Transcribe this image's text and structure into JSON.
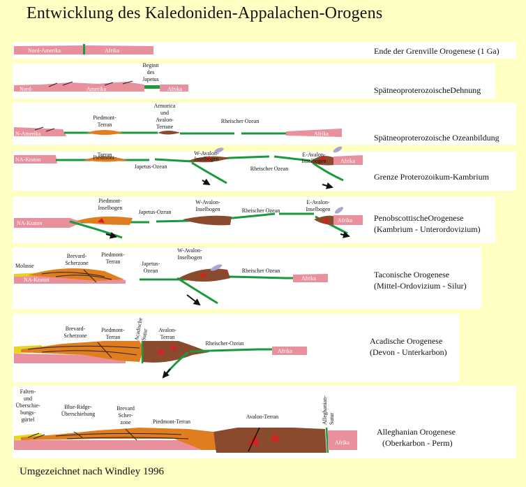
{
  "title": "Entwicklung des Kaledoniden-Appalachen-Orogens",
  "credit": "Umgezeichnet nach Windley 1996",
  "colors": {
    "background": "#ffffc4",
    "panel": "#ffffff",
    "continent": "#e8909c",
    "oceanic_crust": "#1a9a3c",
    "terrane_orange": "#e07d1e",
    "terrane_brown": "#8a4a2e",
    "magma": "#d8201e",
    "volcanic": "#a9a6d4"
  },
  "panels": [
    {
      "stage": "Ende der Grenville Orogenese (1 Ga)",
      "labels": [
        "Nord-Amerika",
        "Afrika"
      ]
    },
    {
      "stage": "SpätneoproterozoischeDehnung",
      "labels": [
        "Nord-",
        "Amerika",
        "Beginn",
        "des",
        "Japetus",
        "Afrika"
      ]
    },
    {
      "stage": "Spätneoproterozoische Ozeanbildung",
      "labels": [
        "N-Amerika",
        "Piedmont-",
        "Terran",
        "Armorica",
        "und",
        "Avalon-",
        "Terrane",
        "Rheischer Ozean",
        "Afrika"
      ]
    },
    {
      "stage": "Grenze Proterozoikum-Kambrium",
      "labels": [
        "NA-Kraton",
        "Piedmont-",
        "Terran",
        "Japetus-Ozean",
        "W-Avalon-",
        "Inselbogen",
        "Rheischer Ozean",
        "E-Avalon-",
        "Inselbogen",
        "Afrika"
      ]
    },
    {
      "stage": "PenobscottischeOrogenese",
      "stage2": "(Kambrium - Unterordovizium)",
      "labels": [
        "NA-Kraton",
        "Piedmont-",
        "Inselbogen",
        "Japetus-Ozean",
        "W-Avalon-",
        "Inselbogen",
        "Rheischer Ozean",
        "E-Avalon-",
        "Inselbogen",
        "Afrika"
      ]
    },
    {
      "stage": "Taconische Orogenese",
      "stage2": "(Mittel-Ordovizium - Silur)",
      "labels": [
        "Molasse",
        "Brevard-",
        "Scherzone",
        "Piedmont-",
        "Terran",
        "Japetus-",
        "Ozean",
        "W-Avalon-",
        "Inselbogen",
        "Rheischer Ozean",
        "NA-Kraton",
        "Afrika"
      ]
    },
    {
      "stage": "Acadische Orogenese",
      "stage2": "(Devon - Unterkarbon)",
      "labels": [
        "Brevard-",
        "Scherzone",
        "Piedmont-",
        "Terran",
        "Acadische",
        "Sutur",
        "Avalon-",
        "Terran",
        "Rheischer-Ozean",
        "Afrika"
      ]
    },
    {
      "stage": "Alleghanian Orogenese",
      "stage2": "(Oberkarbon - Perm)",
      "labels": [
        "Falten-",
        "und",
        "Überschie-",
        "bungs-",
        "gürtel",
        "Blue-Ridge-",
        "Überschiebung",
        "Brevard",
        "Scher-",
        "zone",
        "Piedmont-Terran",
        "Avalon-Terran",
        "Alleghanian-",
        "Sutur",
        "Afrika"
      ]
    }
  ]
}
